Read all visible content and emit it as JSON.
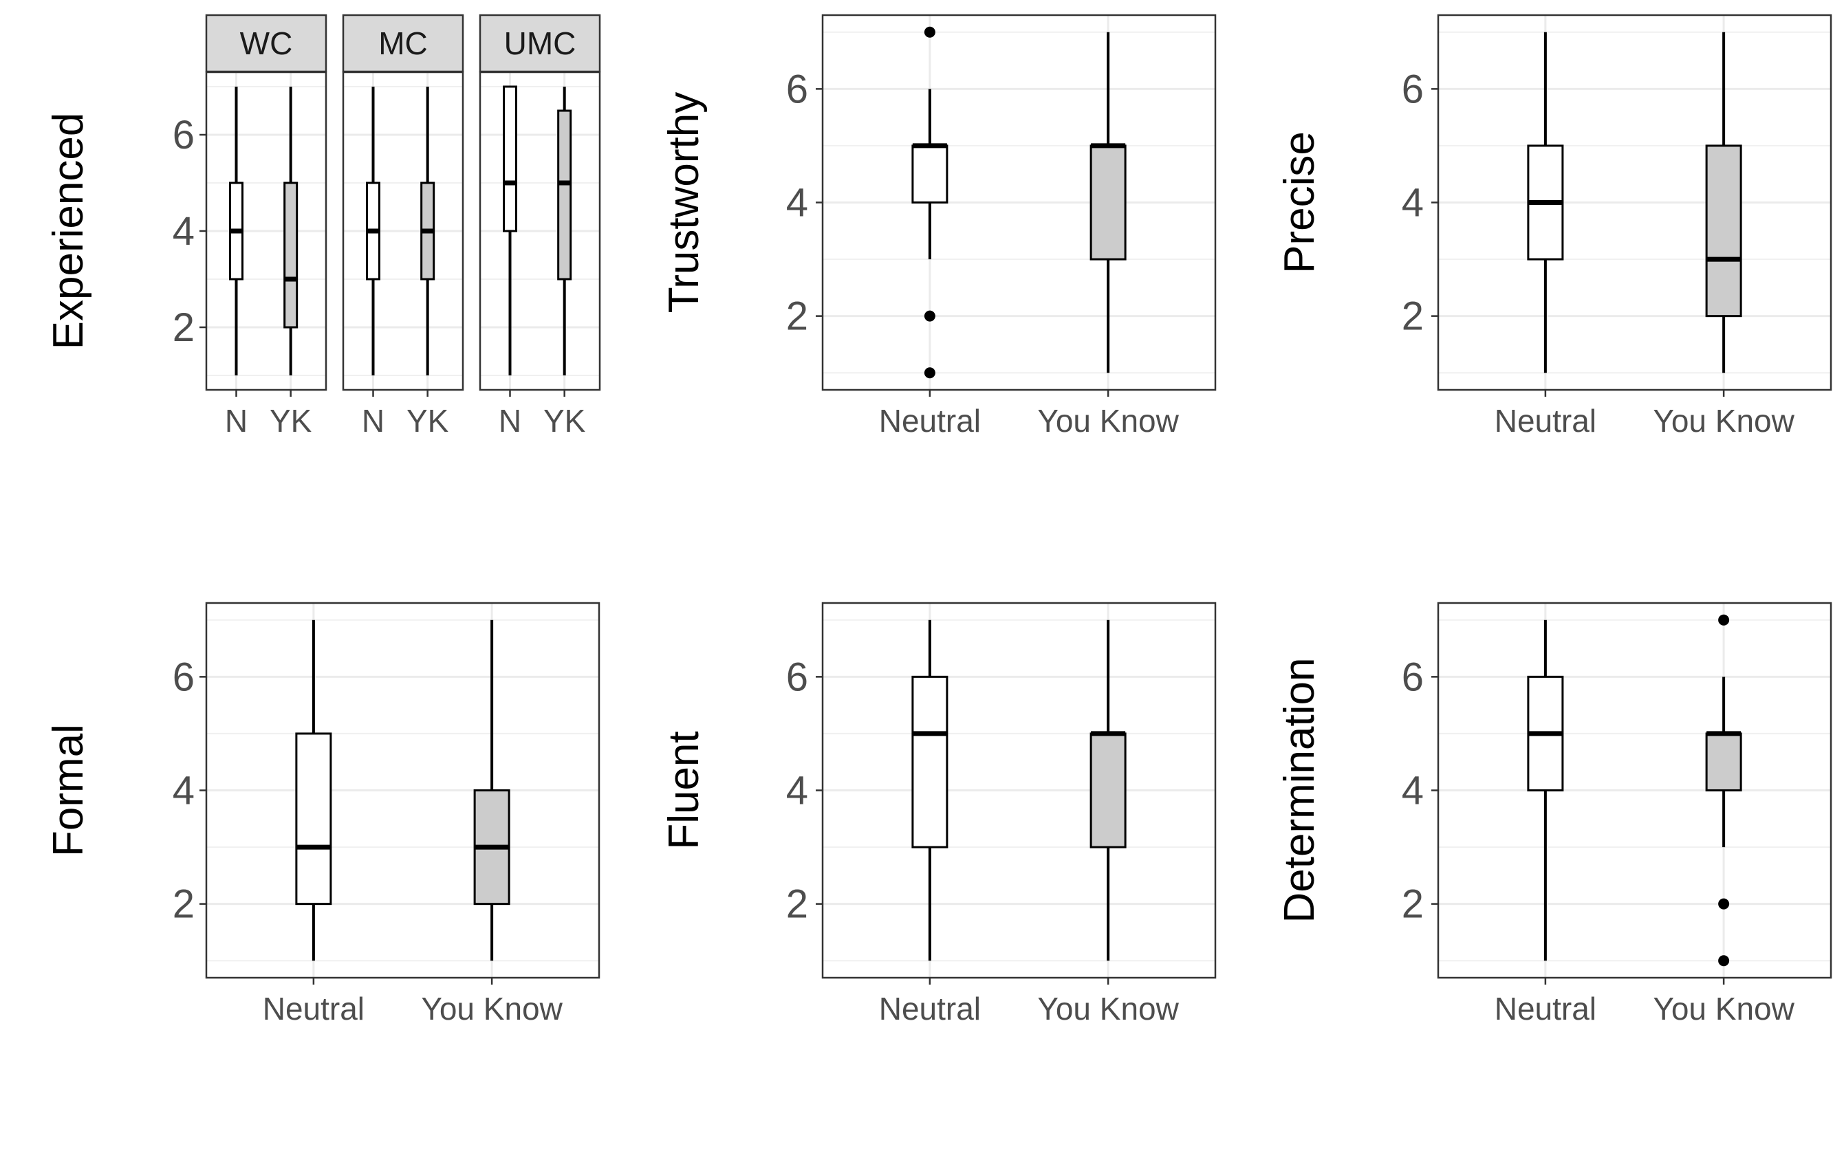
{
  "chart_data": [
    {
      "type": "boxplot",
      "ylabel": "Experienced",
      "ylim": [
        0.7,
        7.3
      ],
      "yticks": [
        2,
        4,
        6
      ],
      "grid": true,
      "facets": [
        {
          "label": "WC",
          "categories": [
            "N",
            "YK"
          ],
          "boxes": [
            {
              "category": "N",
              "min": 1,
              "q1": 3,
              "median": 4,
              "q3": 5,
              "max": 7,
              "outliers": [],
              "fill": "#ffffff"
            },
            {
              "category": "YK",
              "min": 1,
              "q1": 2,
              "median": 3,
              "q3": 5,
              "max": 7,
              "outliers": [],
              "fill": "#cccccc"
            }
          ]
        },
        {
          "label": "MC",
          "categories": [
            "N",
            "YK"
          ],
          "boxes": [
            {
              "category": "N",
              "min": 1,
              "q1": 3,
              "median": 4,
              "q3": 5,
              "max": 7,
              "outliers": [],
              "fill": "#ffffff"
            },
            {
              "category": "YK",
              "min": 1,
              "q1": 3,
              "median": 4,
              "q3": 5,
              "max": 7,
              "outliers": [],
              "fill": "#cccccc"
            }
          ]
        },
        {
          "label": "UMC",
          "categories": [
            "N",
            "YK"
          ],
          "boxes": [
            {
              "category": "N",
              "min": 1,
              "q1": 4,
              "median": 5,
              "q3": 7,
              "max": 7,
              "outliers": [],
              "fill": "#ffffff"
            },
            {
              "category": "YK",
              "min": 1,
              "q1": 3,
              "median": 5,
              "q3": 6.5,
              "max": 7,
              "outliers": [],
              "fill": "#cccccc"
            }
          ]
        }
      ]
    },
    {
      "type": "boxplot",
      "ylabel": "Trustworthy",
      "ylim": [
        0.7,
        7.3
      ],
      "yticks": [
        2,
        4,
        6
      ],
      "grid": true,
      "categories": [
        "Neutral",
        "You Know"
      ],
      "boxes": [
        {
          "category": "Neutral",
          "min": 3,
          "q1": 4,
          "median": 5,
          "q3": 5,
          "max": 6,
          "outliers": [
            7,
            2,
            1
          ],
          "fill": "#ffffff"
        },
        {
          "category": "You Know",
          "min": 1,
          "q1": 3,
          "median": 5,
          "q3": 5,
          "max": 7,
          "outliers": [],
          "fill": "#cccccc"
        }
      ]
    },
    {
      "type": "boxplot",
      "ylabel": "Precise",
      "ylim": [
        0.7,
        7.3
      ],
      "yticks": [
        2,
        4,
        6
      ],
      "grid": true,
      "categories": [
        "Neutral",
        "You Know"
      ],
      "boxes": [
        {
          "category": "Neutral",
          "min": 1,
          "q1": 3,
          "median": 4,
          "q3": 5,
          "max": 7,
          "outliers": [],
          "fill": "#ffffff"
        },
        {
          "category": "You Know",
          "min": 1,
          "q1": 2,
          "median": 3,
          "q3": 5,
          "max": 7,
          "outliers": [],
          "fill": "#cccccc"
        }
      ]
    },
    {
      "type": "boxplot",
      "ylabel": "Formal",
      "ylim": [
        0.7,
        7.3
      ],
      "yticks": [
        2,
        4,
        6
      ],
      "grid": true,
      "categories": [
        "Neutral",
        "You Know"
      ],
      "boxes": [
        {
          "category": "Neutral",
          "min": 1,
          "q1": 2,
          "median": 3,
          "q3": 5,
          "max": 7,
          "outliers": [],
          "fill": "#ffffff"
        },
        {
          "category": "You Know",
          "min": 1,
          "q1": 2,
          "median": 3,
          "q3": 4,
          "max": 7,
          "outliers": [],
          "fill": "#cccccc"
        }
      ]
    },
    {
      "type": "boxplot",
      "ylabel": "Fluent",
      "ylim": [
        0.7,
        7.3
      ],
      "yticks": [
        2,
        4,
        6
      ],
      "grid": true,
      "categories": [
        "Neutral",
        "You Know"
      ],
      "boxes": [
        {
          "category": "Neutral",
          "min": 1,
          "q1": 3,
          "median": 5,
          "q3": 6,
          "max": 7,
          "outliers": [],
          "fill": "#ffffff"
        },
        {
          "category": "You Know",
          "min": 1,
          "q1": 3,
          "median": 5,
          "q3": 5,
          "max": 7,
          "outliers": [],
          "fill": "#cccccc"
        }
      ]
    },
    {
      "type": "boxplot",
      "ylabel": "Determination",
      "ylim": [
        0.7,
        7.3
      ],
      "yticks": [
        2,
        4,
        6
      ],
      "grid": true,
      "categories": [
        "Neutral",
        "You Know"
      ],
      "boxes": [
        {
          "category": "Neutral",
          "min": 1,
          "q1": 4,
          "median": 5,
          "q3": 6,
          "max": 7,
          "outliers": [],
          "fill": "#ffffff"
        },
        {
          "category": "You Know",
          "min": 3,
          "q1": 4,
          "median": 5,
          "q3": 5,
          "max": 6,
          "outliers": [
            7,
            2,
            1
          ],
          "fill": "#cccccc"
        }
      ]
    }
  ]
}
